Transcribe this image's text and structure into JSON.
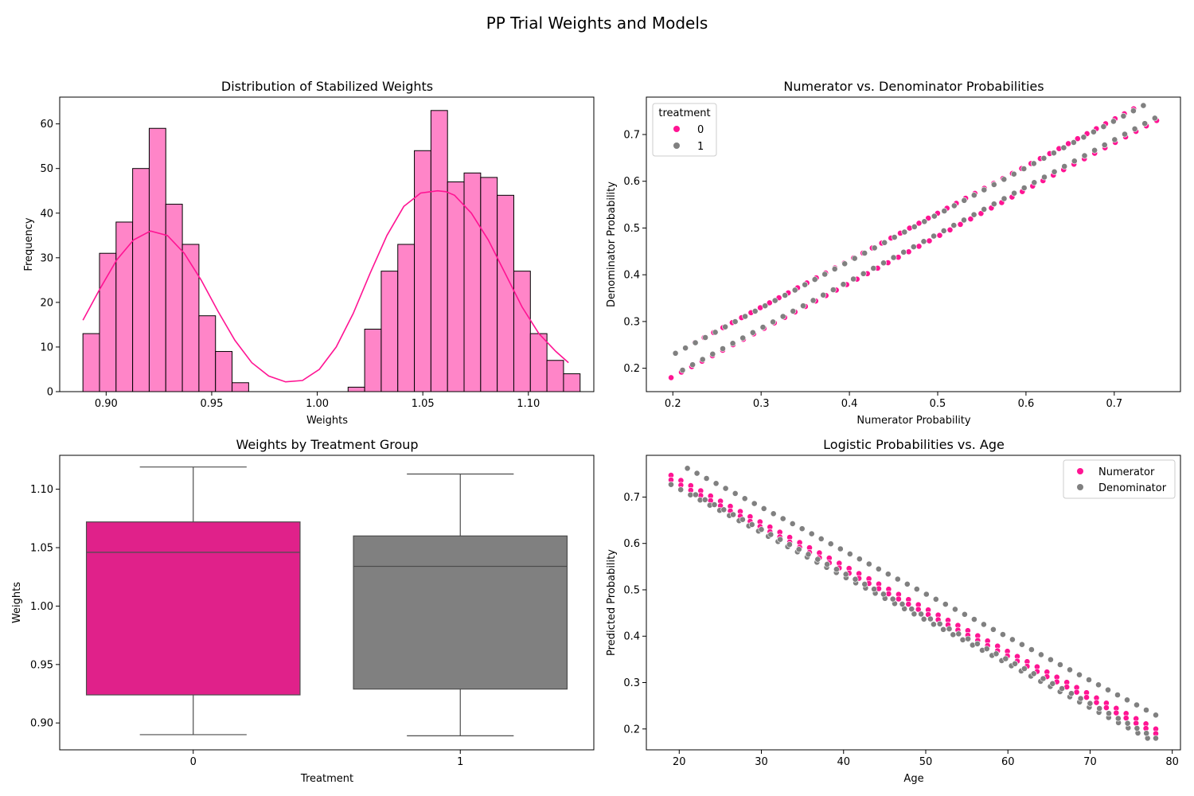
{
  "figure": {
    "title": "PP Trial Weights and Models"
  },
  "colors": {
    "pink": "#ff1493",
    "pink_light": "#ff85c8",
    "grey": "#808080",
    "box_pink": "#e0218a"
  },
  "chart_data": [
    {
      "type": "histogram",
      "title": "Distribution of Stabilized Weights",
      "xlabel": "Weights",
      "ylabel": "Frequency",
      "xlim": [
        0.878,
        1.131
      ],
      "ylim": [
        0,
        66
      ],
      "xticks": [
        0.9,
        0.95,
        1.0,
        1.05,
        1.1
      ],
      "xtick_labels": [
        "0.90",
        "0.95",
        "1.00",
        "1.05",
        "1.10"
      ],
      "yticks": [
        0,
        10,
        20,
        30,
        40,
        50,
        60
      ],
      "bins": {
        "start": 0.889,
        "width": 0.00785
      },
      "counts": [
        13,
        31,
        38,
        50,
        59,
        42,
        33,
        17,
        9,
        2,
        0,
        0,
        0,
        0,
        0,
        0,
        1,
        14,
        27,
        33,
        54,
        63,
        47,
        49,
        48,
        44,
        27,
        13,
        7,
        4
      ],
      "kde": {
        "x": [
          0.889,
          0.897,
          0.905,
          0.913,
          0.921,
          0.929,
          0.937,
          0.945,
          0.953,
          0.961,
          0.969,
          0.977,
          0.985,
          0.993,
          1.001,
          1.009,
          1.017,
          1.025,
          1.033,
          1.041,
          1.049,
          1.057,
          1.061,
          1.065,
          1.073,
          1.081,
          1.089,
          1.097,
          1.105,
          1.113,
          1.119
        ],
        "y": [
          16,
          23,
          29.5,
          34,
          36,
          35,
          31,
          25,
          18,
          11.5,
          6.5,
          3.5,
          2.2,
          2.5,
          5,
          10,
          17.5,
          26.5,
          35,
          41.5,
          44.5,
          45,
          44.8,
          44,
          40,
          34,
          26.5,
          19,
          13,
          9,
          6.5
        ]
      }
    },
    {
      "type": "scatter",
      "title": "Numerator vs. Denominator Probabilities",
      "xlabel": "Numerator Probability",
      "ylabel": "Denominator Probability",
      "xlim": [
        0.17,
        0.775
      ],
      "ylim": [
        0.15,
        0.78
      ],
      "xticks": [
        0.2,
        0.3,
        0.4,
        0.5,
        0.6,
        0.7
      ],
      "xtick_labels": [
        "0.2",
        "0.3",
        "0.4",
        "0.5",
        "0.6",
        "0.7"
      ],
      "yticks": [
        0.2,
        0.3,
        0.4,
        0.5,
        0.6,
        0.7
      ],
      "ytick_labels": [
        "0.2",
        "0.3",
        "0.4",
        "0.5",
        "0.6",
        "0.7"
      ],
      "legend": {
        "title": "treatment",
        "placement": "upper-left"
      },
      "series": [
        {
          "name": "0",
          "color": "#ff1493",
          "lines": [
            {
              "x": [
                0.225,
                0.722
              ],
              "y": [
                0.255,
                0.755
              ]
            },
            {
              "x": [
                0.198,
                0.748
              ],
              "y": [
                0.18,
                0.73
              ]
            }
          ]
        },
        {
          "name": "1",
          "color": "#808080",
          "lines": [
            {
              "x": [
                0.203,
                0.733
              ],
              "y": [
                0.232,
                0.762
              ]
            },
            {
              "x": [
                0.211,
                0.746
              ],
              "y": [
                0.196,
                0.735
              ]
            }
          ]
        }
      ]
    },
    {
      "type": "box",
      "title": "Weights by Treatment Group",
      "xlabel": "Treatment",
      "ylabel": "Weights",
      "ylim": [
        0.877,
        1.129
      ],
      "yticks": [
        0.9,
        0.95,
        1.0,
        1.05,
        1.1
      ],
      "ytick_labels": [
        "0.90",
        "0.95",
        "1.00",
        "1.05",
        "1.10"
      ],
      "categories": [
        "0",
        "1"
      ],
      "boxes": [
        {
          "category": "0",
          "whislo": 0.89,
          "q1": 0.924,
          "median": 1.046,
          "q3": 1.072,
          "whishi": 1.119,
          "color": "#e0218a"
        },
        {
          "category": "1",
          "whislo": 0.889,
          "q1": 0.929,
          "median": 1.034,
          "q3": 1.06,
          "whishi": 1.113,
          "color": "#808080"
        }
      ]
    },
    {
      "type": "scatter",
      "title": "Logistic Probabilities vs. Age",
      "xlabel": "Age",
      "ylabel": "Predicted Probability",
      "xlim": [
        16,
        81
      ],
      "ylim": [
        0.155,
        0.79
      ],
      "xticks": [
        20,
        30,
        40,
        50,
        60,
        70,
        80
      ],
      "yticks": [
        0.2,
        0.3,
        0.4,
        0.5,
        0.6,
        0.7
      ],
      "ytick_labels": [
        "0.2",
        "0.3",
        "0.4",
        "0.5",
        "0.6",
        "0.7"
      ],
      "legend": {
        "placement": "upper-right"
      },
      "series": [
        {
          "name": "Numerator",
          "color": "#ff1493",
          "lines": [
            {
              "x": [
                19,
                78
              ],
              "y": [
                0.747,
                0.2
              ]
            },
            {
              "x": [
                19,
                78
              ],
              "y": [
                0.737,
                0.19
              ]
            }
          ]
        },
        {
          "name": "Denominator",
          "color": "#808080",
          "lines": [
            {
              "x": [
                21,
                78
              ],
              "y": [
                0.762,
                0.23
              ]
            },
            {
              "x": [
                19,
                77
              ],
              "y": [
                0.727,
                0.18
              ]
            },
            {
              "x": [
                22,
                78
              ],
              "y": [
                0.705,
                0.18
              ]
            }
          ]
        }
      ]
    }
  ]
}
